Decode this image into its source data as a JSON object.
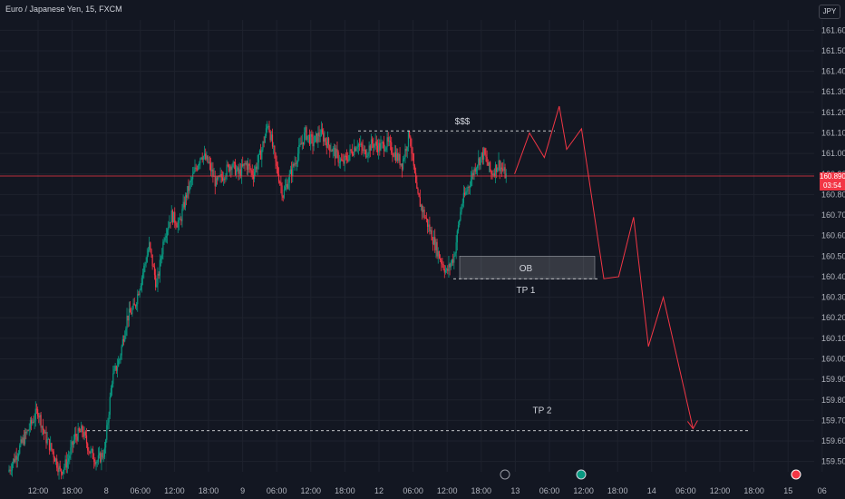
{
  "header": {
    "symbol_title": "Euro / Japanese Yen, 15, FXCM",
    "currency": "JPY"
  },
  "price_badge": {
    "price": "160.890",
    "countdown": "03:54"
  },
  "colors": {
    "up": "#089981",
    "down": "#f23645",
    "price_line": "#f23645",
    "background": "#131722",
    "grid": "#1e222d",
    "projection": "#f23645"
  },
  "chart_data": {
    "type": "candlestick",
    "symbol": "EURJPY",
    "interval": "15",
    "y_ticks": [
      "159.500",
      "159.600",
      "159.700",
      "159.800",
      "159.900",
      "160.000",
      "160.100",
      "160.200",
      "160.300",
      "160.400",
      "160.500",
      "160.600",
      "160.700",
      "160.800",
      "160.900",
      "161.000",
      "161.100",
      "161.200",
      "161.300",
      "161.400",
      "161.500",
      "161.600"
    ],
    "ylim": [
      159.45,
      161.65
    ],
    "x_ticks": [
      "12:00",
      "18:00",
      "8",
      "06:00",
      "12:00",
      "18:00",
      "9",
      "06:00",
      "12:00",
      "18:00",
      "12",
      "06:00",
      "12:00",
      "18:00",
      "13",
      "06:00",
      "12:00",
      "18:00",
      "14",
      "06:00",
      "12:00",
      "18:00",
      "15",
      "06"
    ],
    "current_price": 160.89,
    "price_path": [
      [
        0,
        159.45
      ],
      [
        2,
        159.6
      ],
      [
        4,
        159.75
      ],
      [
        5,
        159.62
      ],
      [
        6,
        159.55
      ],
      [
        7,
        159.45
      ],
      [
        8,
        159.5
      ],
      [
        9,
        159.62
      ],
      [
        10,
        159.65
      ],
      [
        11,
        159.55
      ],
      [
        12,
        159.5
      ],
      [
        13,
        159.55
      ],
      [
        14,
        159.9
      ],
      [
        15,
        160.0
      ],
      [
        16,
        160.2
      ],
      [
        17,
        160.25
      ],
      [
        18,
        160.4
      ],
      [
        19,
        160.55
      ],
      [
        20,
        160.35
      ],
      [
        21,
        160.6
      ],
      [
        22,
        160.7
      ],
      [
        23,
        160.65
      ],
      [
        24,
        160.8
      ],
      [
        25,
        160.9
      ],
      [
        26,
        161.0
      ],
      [
        27,
        160.95
      ],
      [
        28,
        160.85
      ],
      [
        29,
        160.9
      ],
      [
        30,
        160.95
      ],
      [
        31,
        160.9
      ],
      [
        32,
        160.95
      ],
      [
        33,
        160.9
      ],
      [
        34,
        161.0
      ],
      [
        35,
        161.15
      ],
      [
        36,
        160.95
      ],
      [
        37,
        160.8
      ],
      [
        38,
        160.9
      ],
      [
        39,
        161.0
      ],
      [
        40,
        161.1
      ],
      [
        41,
        161.05
      ],
      [
        42,
        161.1
      ],
      [
        43,
        161.05
      ],
      [
        44,
        161.0
      ],
      [
        45,
        160.95
      ],
      [
        46,
        161.0
      ],
      [
        47,
        161.05
      ],
      [
        48,
        161.0
      ],
      [
        49,
        161.05
      ],
      [
        50,
        161.03
      ],
      [
        51,
        161.05
      ],
      [
        52,
        161.0
      ],
      [
        53,
        160.95
      ],
      [
        54,
        161.1
      ],
      [
        55,
        160.8
      ],
      [
        56,
        160.7
      ],
      [
        57,
        160.6
      ],
      [
        58,
        160.5
      ],
      [
        59,
        160.42
      ],
      [
        60,
        160.5
      ],
      [
        61,
        160.75
      ],
      [
        62,
        160.85
      ],
      [
        63,
        160.95
      ],
      [
        64,
        161.0
      ],
      [
        65,
        160.9
      ],
      [
        66,
        160.95
      ],
      [
        67,
        160.89
      ]
    ],
    "annotations": {
      "liquidity_label": "$$$",
      "liquidity_level": 161.11,
      "order_block_label": "OB",
      "order_block_range": [
        160.39,
        160.5
      ],
      "tp1_label": "TP 1",
      "tp1_level": 160.39,
      "tp2_label": "TP 2",
      "tp2_level": 159.65,
      "projection_path": [
        [
          68,
          160.9
        ],
        [
          70,
          161.1
        ],
        [
          72,
          160.98
        ],
        [
          74,
          161.23
        ],
        [
          75,
          161.02
        ],
        [
          77,
          161.12
        ],
        [
          80,
          160.39
        ],
        [
          82,
          160.4
        ],
        [
          84,
          160.69
        ],
        [
          86,
          160.06
        ],
        [
          88,
          160.3
        ],
        [
          92,
          159.66
        ]
      ]
    },
    "xlim": [
      0,
      100
    ]
  }
}
